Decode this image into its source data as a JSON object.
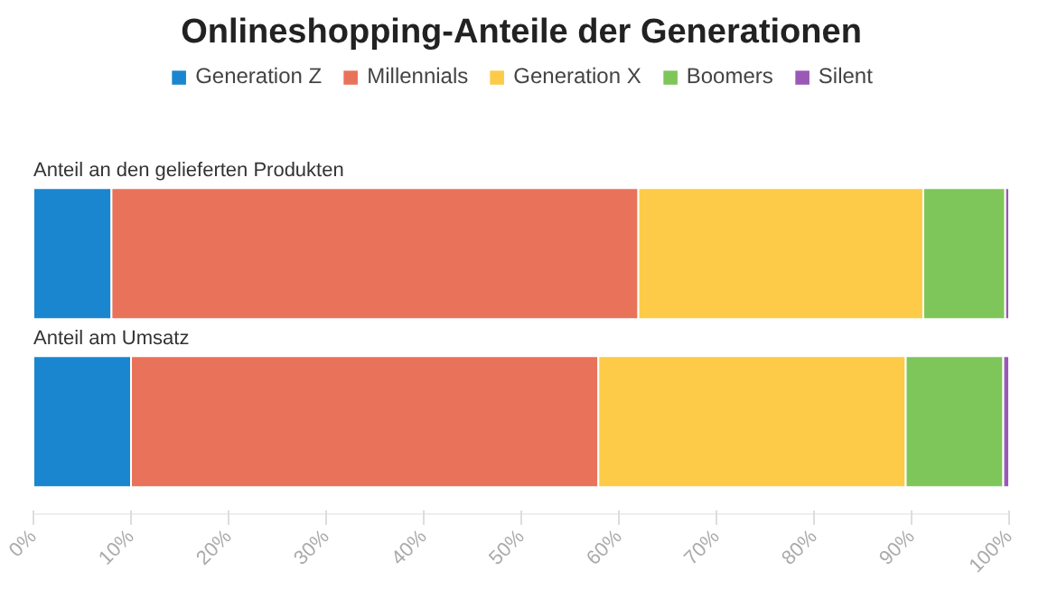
{
  "chart_data": {
    "type": "bar",
    "orientation": "horizontal",
    "stacked": true,
    "title": "Onlineshopping-Anteile der Generationen",
    "categories": [
      "Anteil an den gelieferten Produkten",
      "Anteil am Umsatz"
    ],
    "series": [
      {
        "name": "Generation Z",
        "color": "#1a86d0",
        "values": [
          8.0,
          10.0
        ]
      },
      {
        "name": "Millennials",
        "color": "#e8735a",
        "values": [
          54.0,
          47.9
        ]
      },
      {
        "name": "Generation X",
        "color": "#fdcb48",
        "values": [
          29.2,
          31.5
        ]
      },
      {
        "name": "Boomers",
        "color": "#7fc65a",
        "values": [
          8.4,
          10.0
        ]
      },
      {
        "name": "Silent",
        "color": "#9b59b6",
        "values": [
          0.4,
          0.6
        ]
      }
    ],
    "xlim": [
      0,
      100
    ],
    "xticks": [
      {
        "value": 0,
        "label": "0%"
      },
      {
        "value": 10,
        "label": "10%"
      },
      {
        "value": 20,
        "label": "20%"
      },
      {
        "value": 30,
        "label": "30%"
      },
      {
        "value": 40,
        "label": "40%"
      },
      {
        "value": 50,
        "label": "50%"
      },
      {
        "value": 60,
        "label": "60%"
      },
      {
        "value": 70,
        "label": "70%"
      },
      {
        "value": 80,
        "label": "80%"
      },
      {
        "value": 90,
        "label": "90%"
      },
      {
        "value": 100,
        "label": "100%"
      }
    ],
    "grid": false,
    "legend": "top"
  }
}
